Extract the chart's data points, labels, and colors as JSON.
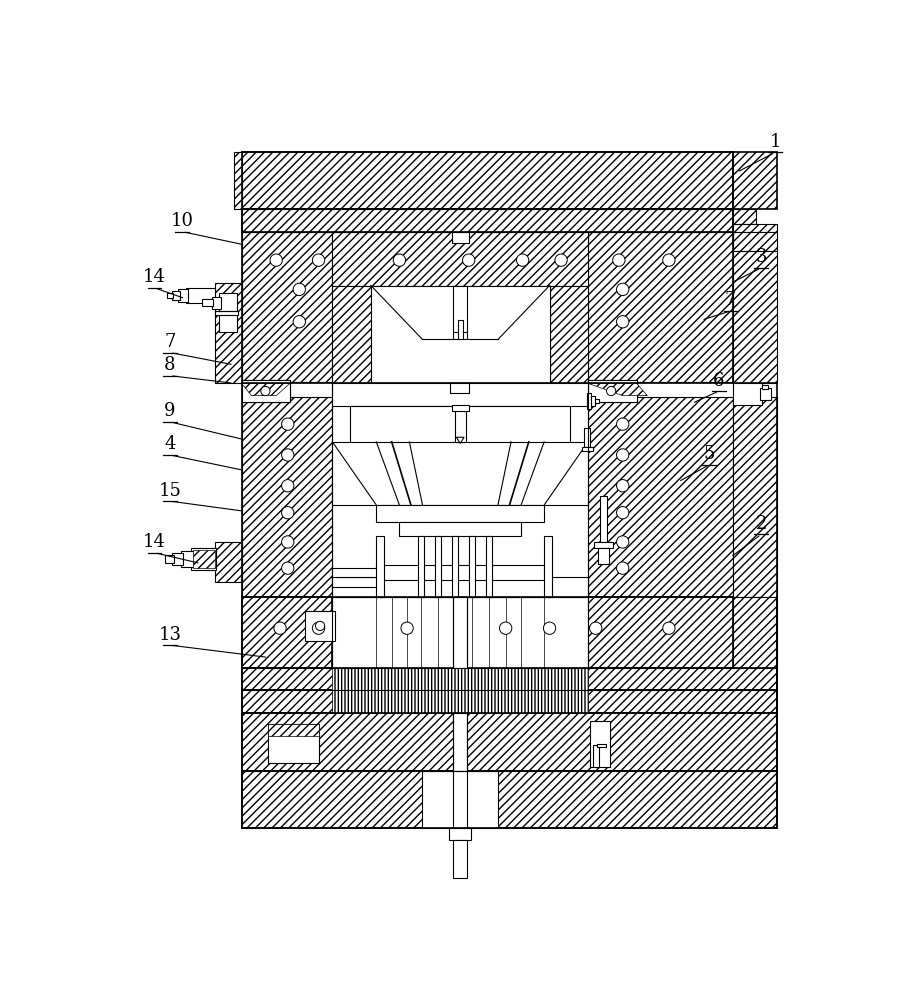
{
  "bg_color": "#ffffff",
  "line_color": "#000000",
  "figsize": [
    8.98,
    10.0
  ],
  "dpi": 100,
  "labels": [
    [
      "1",
      858,
      42,
      808,
      68
    ],
    [
      "2",
      840,
      538,
      800,
      568
    ],
    [
      "3",
      840,
      192,
      800,
      212
    ],
    [
      "4",
      72,
      435,
      168,
      455
    ],
    [
      "5",
      772,
      448,
      732,
      470
    ],
    [
      "6",
      785,
      352,
      750,
      368
    ],
    [
      "7",
      800,
      248,
      762,
      260
    ],
    [
      "7",
      72,
      302,
      155,
      318
    ],
    [
      "8",
      72,
      332,
      155,
      342
    ],
    [
      "9",
      72,
      392,
      168,
      415
    ],
    [
      "10",
      88,
      145,
      168,
      162
    ],
    [
      "13",
      72,
      682,
      200,
      698
    ],
    [
      "14",
      52,
      218,
      92,
      232
    ],
    [
      "14",
      52,
      562,
      112,
      576
    ],
    [
      "15",
      72,
      495,
      168,
      508
    ]
  ]
}
